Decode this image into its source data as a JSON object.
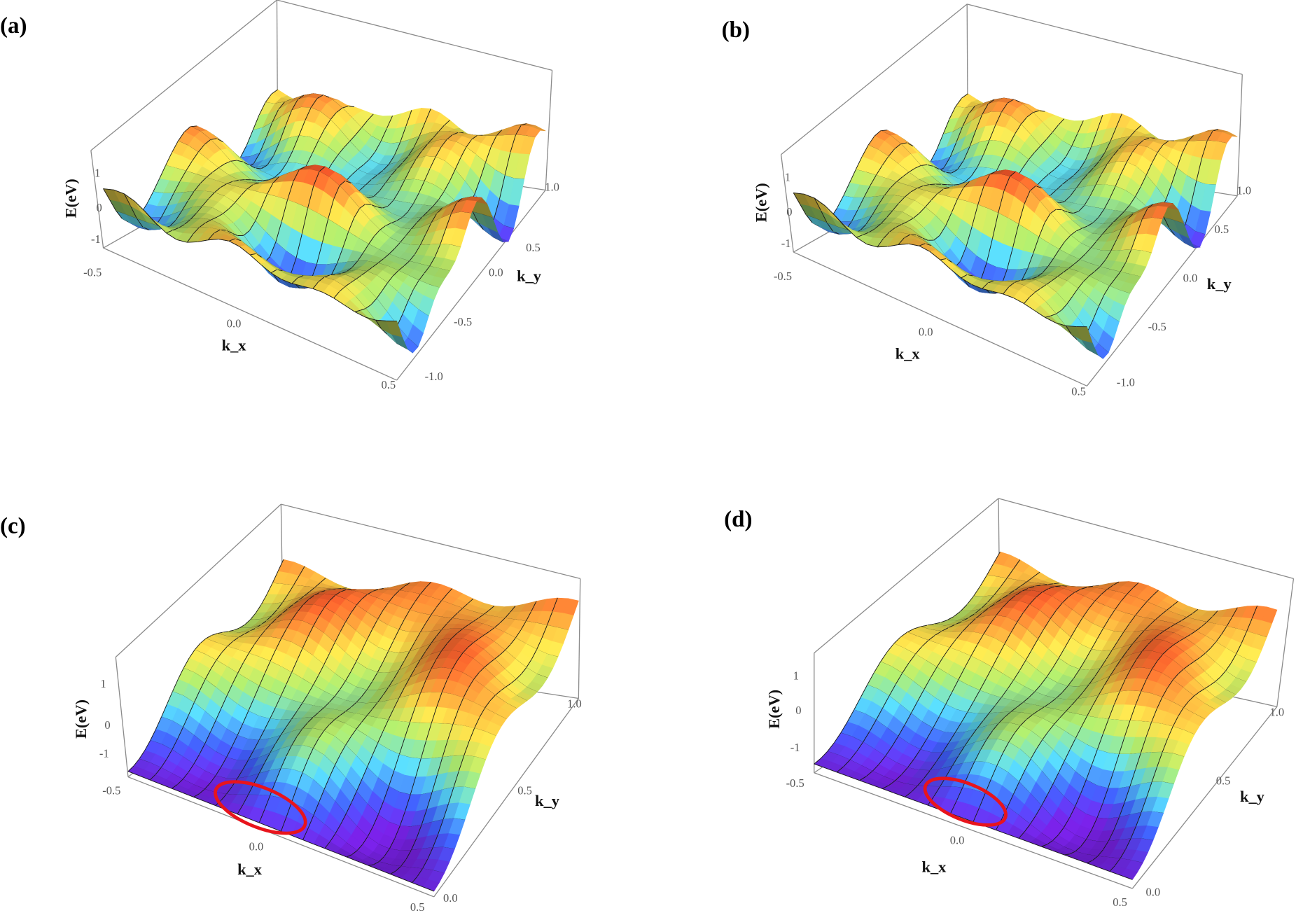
{
  "chart_data": [
    {
      "type": "surface",
      "panel_label": "(a)",
      "xlabel": "k_x",
      "ylabel": "k_y",
      "zlabel": "E(eV)",
      "xlim": [
        -0.5,
        0.5
      ],
      "ylim": [
        -1.0,
        1.0
      ],
      "xticks": [
        "-0.5",
        "0.0",
        "0.5"
      ],
      "yticks": [
        "-1.0",
        "-0.5",
        "0.0",
        "0.5",
        "1.0"
      ],
      "zticks": [
        "-1",
        "0",
        "1"
      ],
      "colormap": "rainbow",
      "mesh": true
    },
    {
      "type": "surface",
      "panel_label": "(b)",
      "xlabel": "k_x",
      "ylabel": "k_y",
      "zlabel": "E(eV)",
      "xlim": [
        -0.5,
        0.5
      ],
      "ylim": [
        -1.0,
        1.0
      ],
      "xticks": [
        "-0.5",
        "0.0",
        "0.5"
      ],
      "yticks": [
        "-1.0",
        "-0.5",
        "0.0",
        "0.5",
        "1.0"
      ],
      "zticks": [
        "-1",
        "0",
        "1"
      ],
      "colormap": "rainbow",
      "mesh": true
    },
    {
      "type": "surface",
      "panel_label": "(c)",
      "xlabel": "k_x",
      "ylabel": "k_y",
      "zlabel": "E(eV)",
      "xlim": [
        -0.5,
        0.5
      ],
      "ylim": [
        0.0,
        1.0
      ],
      "xticks": [
        "-0.5",
        "0.0",
        "0.5"
      ],
      "yticks": [
        "0.0",
        "0.5",
        "1.0"
      ],
      "zticks": [
        "-1",
        "0",
        "1"
      ],
      "colormap": "rainbow",
      "mesh": true,
      "annotation": {
        "shape": "ellipse",
        "color": "#e8141c"
      }
    },
    {
      "type": "surface",
      "panel_label": "(d)",
      "xlabel": "k_x",
      "ylabel": "k_y",
      "zlabel": "E(eV)",
      "xlim": [
        -0.5,
        0.5
      ],
      "ylim": [
        0.0,
        1.0
      ],
      "xticks": [
        "-0.5",
        "0.0",
        "0.5"
      ],
      "yticks": [
        "0.0",
        "0.5",
        "1.0"
      ],
      "zticks": [
        "-1",
        "0",
        "1"
      ],
      "colormap": "rainbow",
      "mesh": true,
      "annotation": {
        "shape": "ellipse",
        "color": "#e8141c"
      }
    }
  ]
}
